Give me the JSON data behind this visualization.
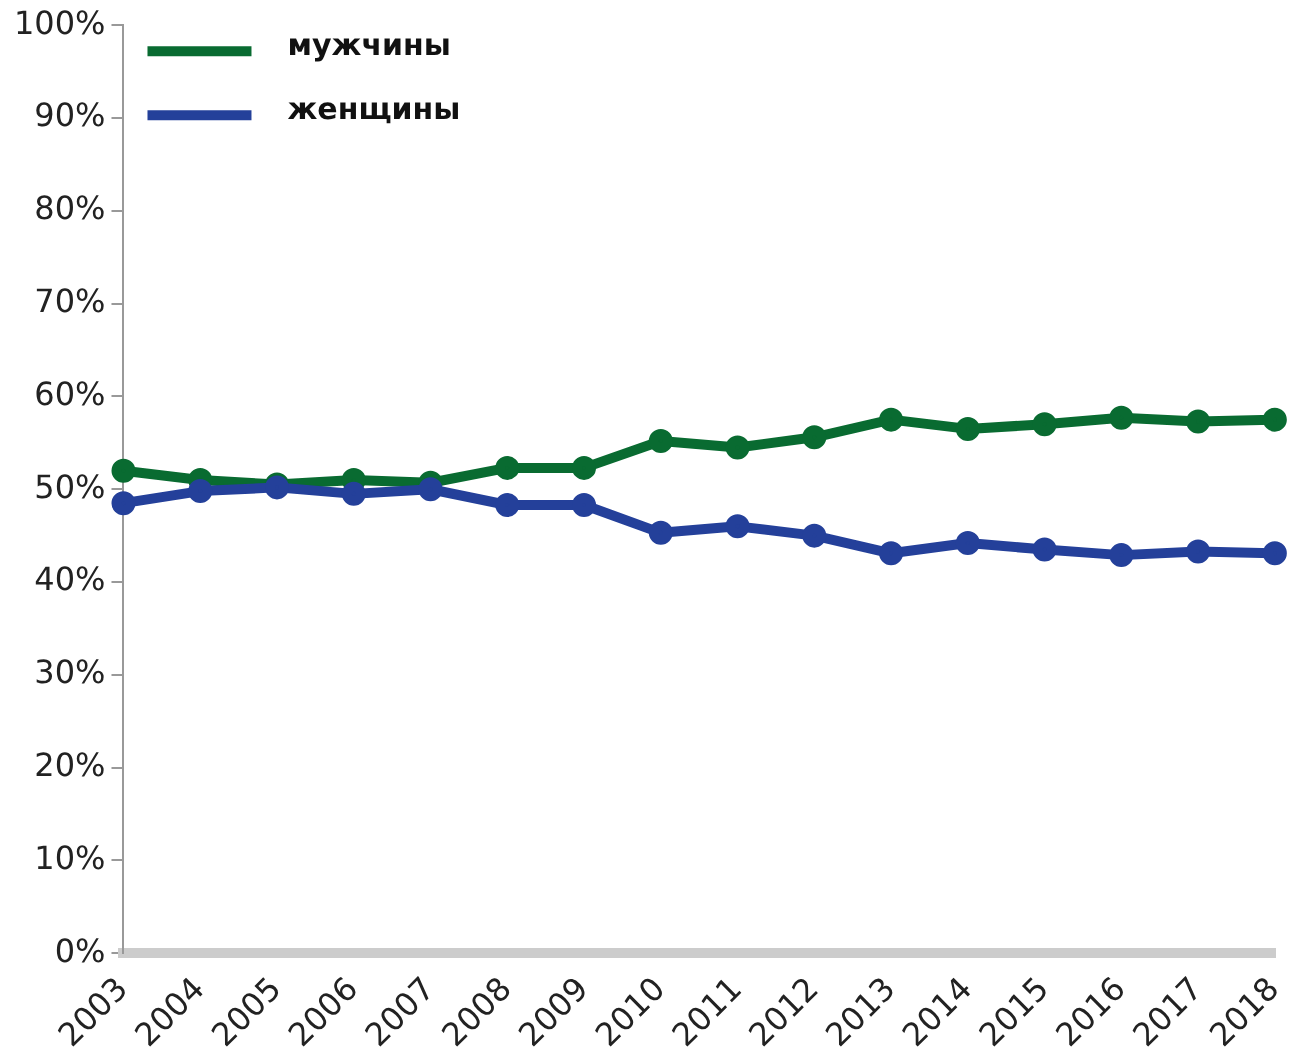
{
  "chart_data": {
    "type": "line",
    "categories": [
      "2003",
      "2004",
      "2005",
      "2006",
      "2007",
      "2008",
      "2009",
      "2010",
      "2011",
      "2012",
      "2013",
      "2014",
      "2015",
      "2016",
      "2017",
      "2018"
    ],
    "series": [
      {
        "name": "мужчины",
        "color": "#096b31",
        "values": [
          52,
          51,
          50.5,
          51,
          50.7,
          52.3,
          52.3,
          55.2,
          54.5,
          55.6,
          57.5,
          56.5,
          57,
          57.7,
          57.3,
          57.5
        ]
      },
      {
        "name": "женщины",
        "color": "#24409a",
        "values": [
          48.5,
          49.8,
          50.2,
          49.5,
          50,
          48.3,
          48.3,
          45.3,
          46,
          45,
          43.1,
          44.2,
          43.5,
          42.9,
          43.3,
          43.1
        ]
      }
    ],
    "ylim": [
      0,
      100
    ],
    "yticks": [
      {
        "value": 0,
        "label": "0%"
      },
      {
        "value": 10,
        "label": "10%"
      },
      {
        "value": 20,
        "label": "20%"
      },
      {
        "value": 30,
        "label": "30%"
      },
      {
        "value": 40,
        "label": "40%"
      },
      {
        "value": 50,
        "label": "50%"
      },
      {
        "value": 60,
        "label": "60%"
      },
      {
        "value": 70,
        "label": "70%"
      },
      {
        "value": 80,
        "label": "80%"
      },
      {
        "value": 90,
        "label": "90%"
      },
      {
        "value": 100,
        "label": "100%"
      }
    ],
    "grid": false,
    "legend": "top left",
    "marker": "circle",
    "line_style": "solid"
  }
}
